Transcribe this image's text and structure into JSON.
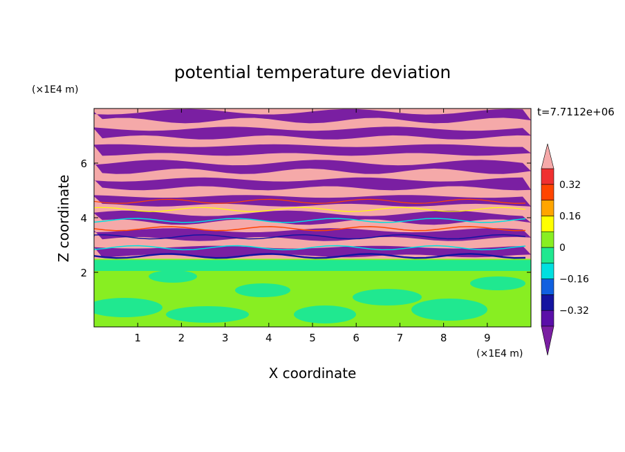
{
  "chart_data": {
    "type": "heatmap",
    "title": "potential temperature deviation",
    "xlabel": "X coordinate",
    "ylabel": "Z coordinate",
    "x_unit": "(×1E4 m)",
    "y_unit": "(×1E4 m)",
    "time_label": "t=7.7112e+06",
    "xlim": [
      0,
      10
    ],
    "ylim": [
      0,
      8
    ],
    "x_ticks": [
      1,
      2,
      3,
      4,
      5,
      6,
      7,
      8,
      9
    ],
    "y_ticks": [
      2,
      4,
      6
    ],
    "colorbar": {
      "levels": [
        -0.4,
        -0.32,
        -0.24,
        -0.16,
        -0.08,
        0,
        0.08,
        0.16,
        0.24,
        0.32,
        0.4
      ],
      "tick_labels": [
        "0.32",
        "0.16",
        "0",
        "−0.16",
        "−0.32"
      ],
      "tick_values": [
        0.32,
        0.16,
        0,
        -0.16,
        -0.32
      ],
      "colors": [
        "#7a1fa2",
        "#5a0fa8",
        "#1414a0",
        "#1060e0",
        "#00e0e0",
        "#20e890",
        "#88ee22",
        "#ffff00",
        "#ffa500",
        "#ff4500",
        "#f03030",
        "#f5a9a9"
      ],
      "over_color": "#f5a9a9",
      "under_color": "#7a1fa2",
      "extend": "both"
    },
    "regions": {
      "upper_band_colors": [
        "#f5a9a9",
        "#7a1fa2"
      ],
      "interface_colors": [
        "#1414a0",
        "#00e0e0",
        "#ffff00",
        "#ff4500"
      ],
      "lower_layer_colors": [
        "#88ee22",
        "#20e890"
      ]
    }
  }
}
